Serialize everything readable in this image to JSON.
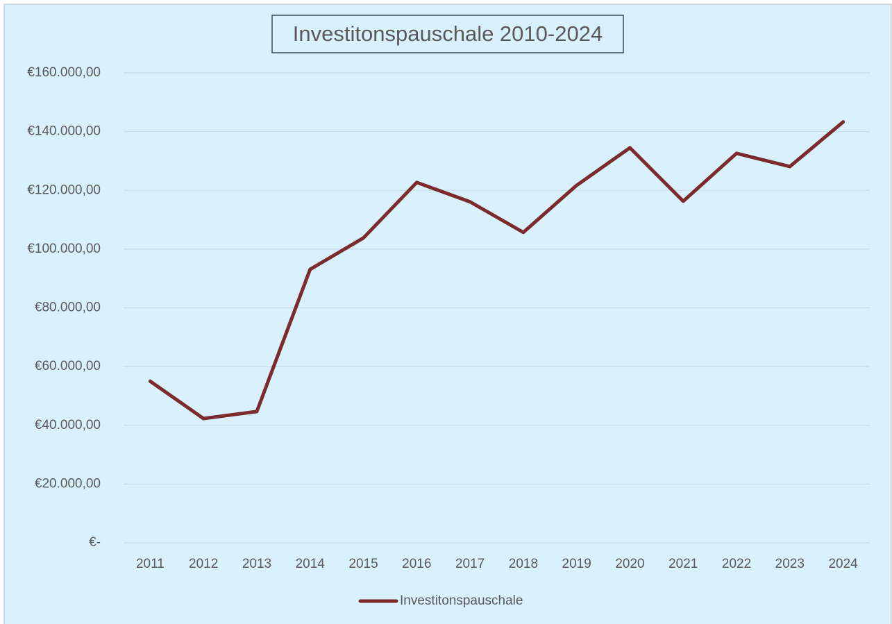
{
  "chart_data": {
    "type": "line",
    "title": "Investitonspauschale 2010-2024",
    "categories": [
      "2011",
      "2012",
      "2013",
      "2014",
      "2015",
      "2016",
      "2017",
      "2018",
      "2019",
      "2020",
      "2021",
      "2022",
      "2023",
      "2024"
    ],
    "series": [
      {
        "name": "Investitonspauschale",
        "color": "#7b2b2b",
        "values": [
          55000,
          42300,
          44700,
          93100,
          103800,
          122700,
          116100,
          105700,
          121700,
          134500,
          116300,
          132600,
          128100,
          143300
        ]
      }
    ],
    "ylim": [
      0,
      160000
    ],
    "yticks": [
      {
        "value": 0,
        "label": "€-"
      },
      {
        "value": 20000,
        "label": "€20.000,00"
      },
      {
        "value": 40000,
        "label": "€40.000,00"
      },
      {
        "value": 60000,
        "label": "€60.000,00"
      },
      {
        "value": 80000,
        "label": "€80.000,00"
      },
      {
        "value": 100000,
        "label": "€100.000,00"
      },
      {
        "value": 120000,
        "label": "€120.000,00"
      },
      {
        "value": 140000,
        "label": "€140.000,00"
      },
      {
        "value": 160000,
        "label": "€160.000,00"
      }
    ],
    "grid": true,
    "legend": "bottom"
  }
}
